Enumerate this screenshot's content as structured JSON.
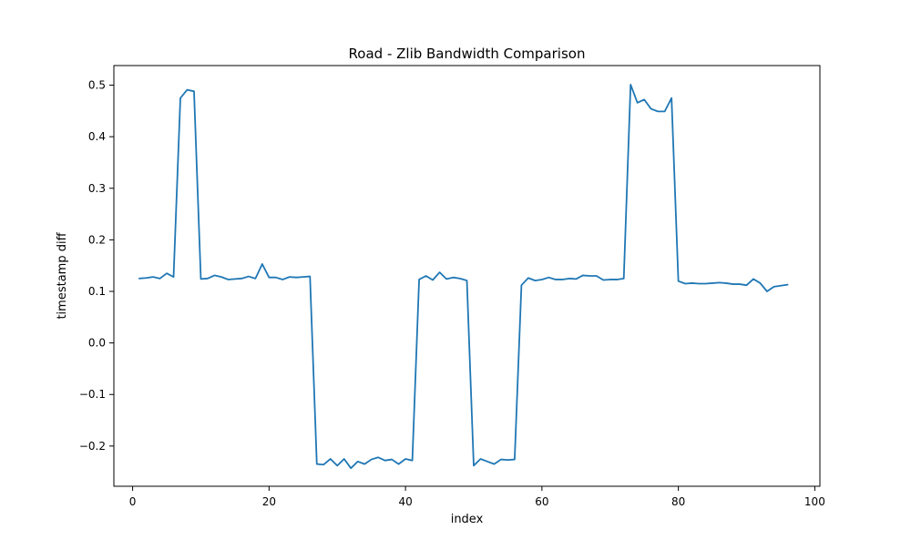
{
  "chart_data": {
    "type": "line",
    "title": "Road - Zlib Bandwidth Comparison",
    "xlabel": "index",
    "ylabel": "timestamp diff",
    "xlim": [
      -2.75,
      100.75
    ],
    "ylim": [
      -0.278,
      0.538
    ],
    "grid": false,
    "legend": "none",
    "line_color": "#1f77b4",
    "xticks": [
      {
        "value": 0,
        "label": "0"
      },
      {
        "value": 20,
        "label": "20"
      },
      {
        "value": 40,
        "label": "40"
      },
      {
        "value": 60,
        "label": "60"
      },
      {
        "value": 80,
        "label": "80"
      },
      {
        "value": 100,
        "label": "100"
      }
    ],
    "yticks": [
      {
        "value": -0.2,
        "label": "−0.2"
      },
      {
        "value": -0.1,
        "label": "−0.1"
      },
      {
        "value": 0.0,
        "label": "0.0"
      },
      {
        "value": 0.1,
        "label": "0.1"
      },
      {
        "value": 0.2,
        "label": "0.2"
      },
      {
        "value": 0.3,
        "label": "0.3"
      },
      {
        "value": 0.4,
        "label": "0.4"
      },
      {
        "value": 0.5,
        "label": "0.5"
      }
    ],
    "series": [
      {
        "x": [
          1,
          2,
          3,
          4,
          5,
          6,
          7,
          8,
          9,
          10,
          11,
          12,
          13,
          14,
          15,
          16,
          17,
          18,
          19,
          20,
          21,
          22,
          23,
          24,
          25,
          26,
          27,
          28,
          29,
          30,
          31,
          32,
          33,
          34,
          35,
          36,
          37,
          38,
          39,
          40,
          41,
          42,
          43,
          44,
          45,
          46,
          47,
          48,
          49,
          50,
          51,
          52,
          53,
          54,
          55,
          56,
          57,
          58,
          59,
          60,
          61,
          62,
          63,
          64,
          65,
          66,
          67,
          68,
          69,
          70,
          71,
          72,
          73,
          74,
          75,
          76,
          77,
          78,
          79,
          80,
          81,
          82,
          83,
          84,
          85,
          86,
          87,
          88,
          89,
          90,
          91,
          92,
          93,
          94,
          95,
          96
        ],
        "values": [
          0.125,
          0.126,
          0.128,
          0.125,
          0.135,
          0.128,
          0.475,
          0.491,
          0.488,
          0.124,
          0.125,
          0.131,
          0.128,
          0.123,
          0.124,
          0.125,
          0.129,
          0.125,
          0.153,
          0.127,
          0.127,
          0.123,
          0.128,
          0.127,
          0.128,
          0.129,
          -0.235,
          -0.236,
          -0.225,
          -0.238,
          -0.225,
          -0.243,
          -0.23,
          -0.235,
          -0.226,
          -0.222,
          -0.228,
          -0.226,
          -0.235,
          -0.225,
          -0.228,
          0.123,
          0.13,
          0.122,
          0.137,
          0.124,
          0.127,
          0.125,
          0.121,
          -0.238,
          -0.225,
          -0.23,
          -0.235,
          -0.226,
          -0.227,
          -0.226,
          0.112,
          0.126,
          0.121,
          0.123,
          0.127,
          0.123,
          0.123,
          0.125,
          0.124,
          0.131,
          0.13,
          0.13,
          0.122,
          0.123,
          0.123,
          0.125,
          0.501,
          0.466,
          0.472,
          0.454,
          0.449,
          0.449,
          0.475,
          0.12,
          0.115,
          0.116,
          0.115,
          0.115,
          0.116,
          0.117,
          0.116,
          0.114,
          0.114,
          0.112,
          0.124,
          0.116,
          0.1,
          0.109,
          0.111,
          0.113
        ]
      }
    ]
  }
}
